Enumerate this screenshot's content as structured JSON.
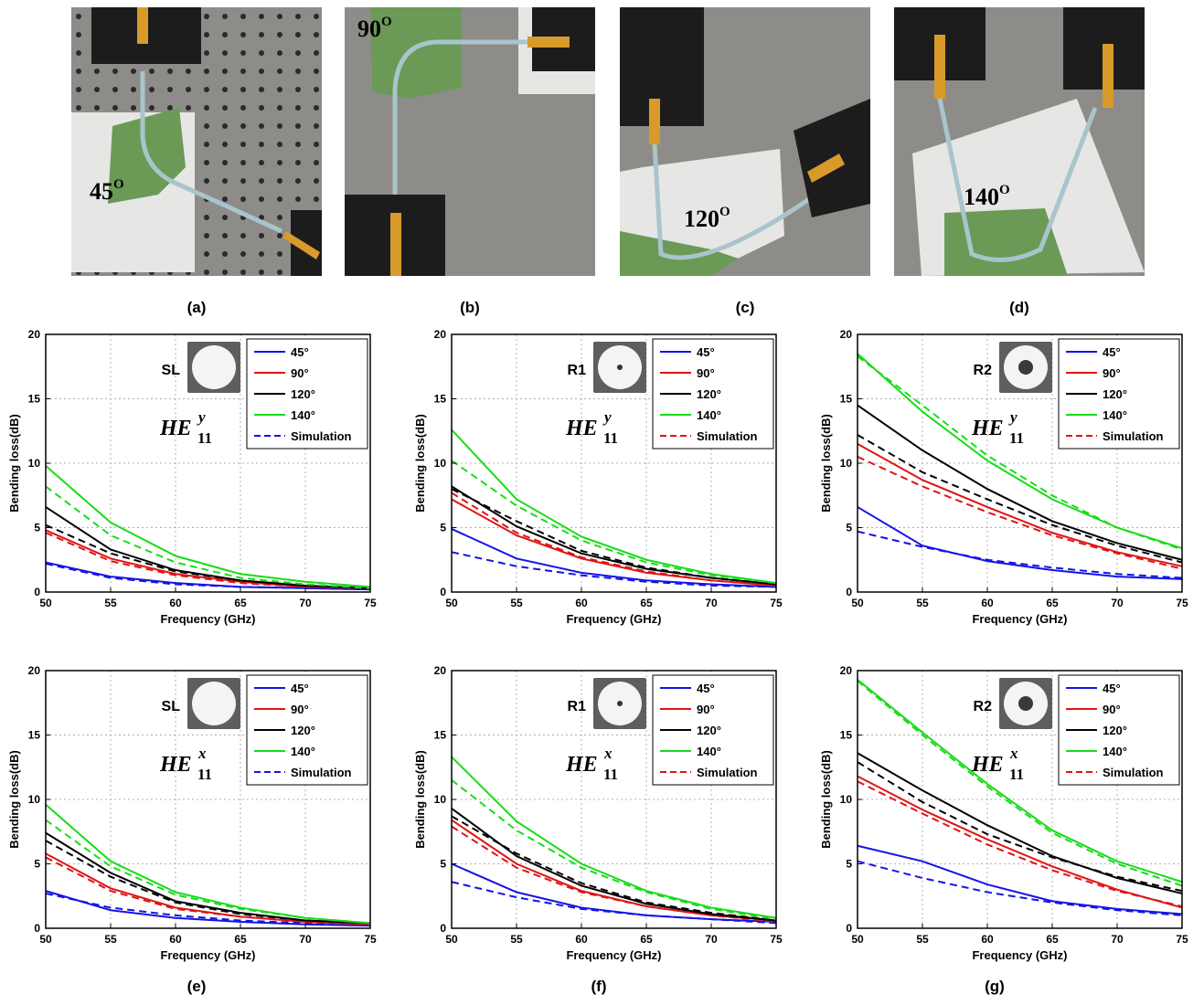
{
  "photo_panels": [
    {
      "id": "a",
      "label": "(a)",
      "angle": "45",
      "superscript": "O"
    },
    {
      "id": "b",
      "label": "(b)",
      "angle": "90",
      "superscript": "O"
    },
    {
      "id": "c",
      "label": "(c)",
      "angle": "120",
      "superscript": "O"
    },
    {
      "id": "d",
      "label": "(d)",
      "angle": "140",
      "superscript": "O"
    }
  ],
  "chart_labels": [
    "(e)",
    "(f)",
    "(g)"
  ],
  "colors": {
    "blue": "#1414e6",
    "red": "#e01414",
    "black": "#000000",
    "green": "#18dc18",
    "grid": "#b0b0b0",
    "board": "#8e8c88",
    "foam": "#6a9a56",
    "metal": "#d89a2a",
    "mount": "#1c1c1c"
  },
  "chart_data": [
    {
      "id": "top-SL",
      "type": "line",
      "xlabel": "Frequency (GHz)",
      "ylabel": "Bending loss(dB)",
      "xlim": [
        50,
        75
      ],
      "ylim": [
        0,
        20
      ],
      "xticks": [
        "50",
        "55",
        "60",
        "65",
        "70",
        "75"
      ],
      "yticks": [
        "0",
        "5",
        "10",
        "15",
        "20"
      ],
      "sample_label": "SL",
      "sample_hole": "none",
      "mode_label": {
        "base": "HE",
        "sub": "11",
        "sup": "y"
      },
      "legend": [
        "45°",
        "90°",
        "120°",
        "140°",
        "Simulation"
      ],
      "legend_position": "top-right",
      "sim_color": "blue",
      "grid": true,
      "x": [
        50,
        55,
        60,
        65,
        70,
        75
      ],
      "series": [
        {
          "name": "45°",
          "color": "blue",
          "measured": [
            2.3,
            1.2,
            0.7,
            0.4,
            0.3,
            0.2
          ],
          "simulated": [
            2.2,
            1.1,
            0.6,
            0.4,
            0.3,
            0.2
          ]
        },
        {
          "name": "90°",
          "color": "red",
          "measured": [
            4.8,
            2.6,
            1.4,
            0.8,
            0.4,
            0.3
          ],
          "simulated": [
            4.6,
            2.4,
            1.3,
            0.7,
            0.4,
            0.3
          ]
        },
        {
          "name": "120°",
          "color": "black",
          "measured": [
            6.6,
            3.3,
            1.7,
            0.9,
            0.5,
            0.3
          ],
          "simulated": [
            5.2,
            3.0,
            1.6,
            0.9,
            0.5,
            0.3
          ]
        },
        {
          "name": "140°",
          "color": "green",
          "measured": [
            9.8,
            5.4,
            2.8,
            1.4,
            0.8,
            0.4
          ],
          "simulated": [
            8.2,
            4.4,
            2.3,
            1.1,
            0.6,
            0.3
          ]
        }
      ]
    },
    {
      "id": "top-R1",
      "type": "line",
      "xlabel": "Frequency (GHz)",
      "ylabel": "Bending loss(dB)",
      "xlim": [
        50,
        75
      ],
      "ylim": [
        0,
        20
      ],
      "xticks": [
        "50",
        "55",
        "60",
        "65",
        "70",
        "75"
      ],
      "yticks": [
        "0",
        "5",
        "10",
        "15",
        "20"
      ],
      "sample_label": "R1",
      "sample_hole": "small",
      "mode_label": {
        "base": "HE",
        "sub": "11",
        "sup": "y"
      },
      "legend": [
        "45°",
        "90°",
        "120°",
        "140°",
        "Simulation"
      ],
      "legend_position": "top-right",
      "sim_color": "red",
      "grid": true,
      "x": [
        50,
        55,
        60,
        65,
        70,
        75
      ],
      "series": [
        {
          "name": "45°",
          "color": "blue",
          "measured": [
            4.9,
            2.6,
            1.5,
            0.9,
            0.6,
            0.4
          ],
          "simulated": [
            3.1,
            2.0,
            1.3,
            0.8,
            0.5,
            0.4
          ]
        },
        {
          "name": "90°",
          "color": "red",
          "measured": [
            7.2,
            4.4,
            2.6,
            1.5,
            0.9,
            0.5
          ],
          "simulated": [
            7.7,
            4.6,
            2.7,
            1.6,
            0.9,
            0.5
          ]
        },
        {
          "name": "120°",
          "color": "black",
          "measured": [
            8.2,
            5.1,
            3.0,
            1.8,
            1.1,
            0.6
          ],
          "simulated": [
            8.0,
            5.5,
            3.2,
            1.9,
            1.1,
            0.6
          ]
        },
        {
          "name": "140°",
          "color": "green",
          "measured": [
            12.6,
            7.2,
            4.3,
            2.5,
            1.4,
            0.7
          ],
          "simulated": [
            10.2,
            6.7,
            4.0,
            2.3,
            1.3,
            0.7
          ]
        }
      ]
    },
    {
      "id": "top-R2",
      "type": "line",
      "xlabel": "Frequency (GHz)",
      "ylabel": "Bending loss(dB)",
      "xlim": [
        50,
        75
      ],
      "ylim": [
        0,
        20
      ],
      "xticks": [
        "50",
        "55",
        "60",
        "65",
        "70",
        "75"
      ],
      "yticks": [
        "0",
        "5",
        "10",
        "15",
        "20"
      ],
      "sample_label": "R2",
      "sample_hole": "large",
      "mode_label": {
        "base": "HE",
        "sub": "11",
        "sup": "y"
      },
      "legend": [
        "45°",
        "90°",
        "120°",
        "140°",
        "Simulation"
      ],
      "legend_position": "top-right",
      "sim_color": "red",
      "grid": true,
      "x": [
        50,
        55,
        60,
        65,
        70,
        75
      ],
      "series": [
        {
          "name": "45°",
          "color": "blue",
          "measured": [
            6.6,
            3.6,
            2.4,
            1.7,
            1.2,
            1.0
          ],
          "simulated": [
            4.7,
            3.5,
            2.5,
            1.9,
            1.4,
            1.1
          ]
        },
        {
          "name": "90°",
          "color": "red",
          "measured": [
            11.5,
            8.7,
            6.6,
            4.6,
            3.1,
            2.0
          ],
          "simulated": [
            10.5,
            8.2,
            6.2,
            4.4,
            3.0,
            1.8
          ]
        },
        {
          "name": "120°",
          "color": "black",
          "measured": [
            14.5,
            11.0,
            8.0,
            5.5,
            3.8,
            2.5
          ],
          "simulated": [
            12.2,
            9.3,
            7.2,
            5.2,
            3.6,
            2.3
          ]
        },
        {
          "name": "140°",
          "color": "green",
          "measured": [
            18.5,
            14.0,
            10.2,
            7.2,
            5.0,
            3.4
          ],
          "simulated": [
            18.3,
            14.5,
            10.6,
            7.5,
            5.0,
            3.3
          ]
        }
      ]
    },
    {
      "id": "bot-SL",
      "type": "line",
      "xlabel": "Frequency (GHz)",
      "ylabel": "Bending loss(dB)",
      "xlim": [
        50,
        75
      ],
      "ylim": [
        0,
        20
      ],
      "xticks": [
        "50",
        "55",
        "60",
        "65",
        "70",
        "75"
      ],
      "yticks": [
        "0",
        "5",
        "10",
        "15",
        "20"
      ],
      "sample_label": "SL",
      "sample_hole": "none",
      "mode_label": {
        "base": "HE",
        "sub": "11",
        "sup": "x"
      },
      "legend": [
        "45°",
        "90°",
        "120°",
        "140°",
        "Simulation"
      ],
      "legend_position": "top-right",
      "sim_color": "blue",
      "grid": true,
      "x": [
        50,
        55,
        60,
        65,
        70,
        75
      ],
      "series": [
        {
          "name": "45°",
          "color": "blue",
          "measured": [
            2.9,
            1.4,
            0.8,
            0.5,
            0.3,
            0.2
          ],
          "simulated": [
            2.7,
            1.6,
            1.0,
            0.6,
            0.4,
            0.3
          ]
        },
        {
          "name": "90°",
          "color": "red",
          "measured": [
            5.8,
            3.1,
            1.6,
            0.9,
            0.5,
            0.3
          ],
          "simulated": [
            5.5,
            2.9,
            1.5,
            0.9,
            0.5,
            0.3
          ]
        },
        {
          "name": "120°",
          "color": "black",
          "measured": [
            7.4,
            4.3,
            2.1,
            1.2,
            0.6,
            0.4
          ],
          "simulated": [
            6.8,
            4.0,
            2.0,
            1.1,
            0.6,
            0.4
          ]
        },
        {
          "name": "140°",
          "color": "green",
          "measured": [
            9.6,
            5.2,
            2.8,
            1.6,
            0.8,
            0.4
          ],
          "simulated": [
            8.4,
            4.8,
            2.6,
            1.5,
            0.8,
            0.4
          ]
        }
      ]
    },
    {
      "id": "bot-R1",
      "type": "line",
      "xlabel": "Frequency (GHz)",
      "ylabel": "Bending loss(dB)",
      "xlim": [
        50,
        75
      ],
      "ylim": [
        0,
        20
      ],
      "xticks": [
        "50",
        "55",
        "60",
        "65",
        "70",
        "75"
      ],
      "yticks": [
        "0",
        "5",
        "10",
        "15",
        "20"
      ],
      "sample_label": "R1",
      "sample_hole": "small",
      "mode_label": {
        "base": "HE",
        "sub": "11",
        "sup": "x"
      },
      "legend": [
        "45°",
        "90°",
        "120°",
        "140°",
        "Simulation"
      ],
      "legend_position": "top-right",
      "sim_color": "red",
      "grid": true,
      "x": [
        50,
        55,
        60,
        65,
        70,
        75
      ],
      "series": [
        {
          "name": "45°",
          "color": "blue",
          "measured": [
            5.0,
            2.8,
            1.6,
            1.0,
            0.7,
            0.5
          ],
          "simulated": [
            3.6,
            2.4,
            1.5,
            1.0,
            0.7,
            0.4
          ]
        },
        {
          "name": "90°",
          "color": "red",
          "measured": [
            8.4,
            5.0,
            2.9,
            1.7,
            1.0,
            0.6
          ],
          "simulated": [
            7.9,
            4.7,
            2.8,
            1.7,
            1.0,
            0.5
          ]
        },
        {
          "name": "120°",
          "color": "black",
          "measured": [
            9.3,
            5.6,
            3.3,
            1.9,
            1.1,
            0.6
          ],
          "simulated": [
            8.7,
            5.8,
            3.5,
            2.0,
            1.2,
            0.6
          ]
        },
        {
          "name": "140°",
          "color": "green",
          "measured": [
            13.3,
            8.3,
            5.0,
            2.9,
            1.6,
            0.8
          ],
          "simulated": [
            11.5,
            7.6,
            4.7,
            2.8,
            1.5,
            0.7
          ]
        }
      ]
    },
    {
      "id": "bot-R2",
      "type": "line",
      "xlabel": "Frequency (GHz)",
      "ylabel": "Bending loss(dB)",
      "xlim": [
        50,
        75
      ],
      "ylim": [
        0,
        20
      ],
      "xticks": [
        "50",
        "55",
        "60",
        "65",
        "70",
        "75"
      ],
      "yticks": [
        "0",
        "5",
        "10",
        "15",
        "20"
      ],
      "sample_label": "R2",
      "sample_hole": "large",
      "mode_label": {
        "base": "HE",
        "sub": "11",
        "sup": "x"
      },
      "legend": [
        "45°",
        "90°",
        "120°",
        "140°",
        "Simulation"
      ],
      "legend_position": "top-right",
      "sim_color": "red",
      "grid": true,
      "x": [
        50,
        55,
        60,
        65,
        70,
        75
      ],
      "series": [
        {
          "name": "45°",
          "color": "blue",
          "measured": [
            6.4,
            5.2,
            3.4,
            2.1,
            1.5,
            1.1
          ],
          "simulated": [
            5.2,
            3.9,
            2.8,
            2.0,
            1.4,
            1.0
          ]
        },
        {
          "name": "90°",
          "color": "red",
          "measured": [
            11.8,
            9.2,
            6.9,
            4.8,
            3.0,
            1.6
          ],
          "simulated": [
            11.4,
            8.9,
            6.5,
            4.5,
            2.9,
            1.7
          ]
        },
        {
          "name": "120°",
          "color": "black",
          "measured": [
            13.6,
            10.7,
            8.0,
            5.6,
            3.9,
            2.7
          ],
          "simulated": [
            12.9,
            9.8,
            7.3,
            5.5,
            4.0,
            2.9
          ]
        },
        {
          "name": "140°",
          "color": "green",
          "measured": [
            19.3,
            15.2,
            11.2,
            7.6,
            5.2,
            3.6
          ],
          "simulated": [
            19.2,
            15.0,
            11.0,
            7.4,
            5.0,
            3.3
          ]
        }
      ]
    }
  ]
}
